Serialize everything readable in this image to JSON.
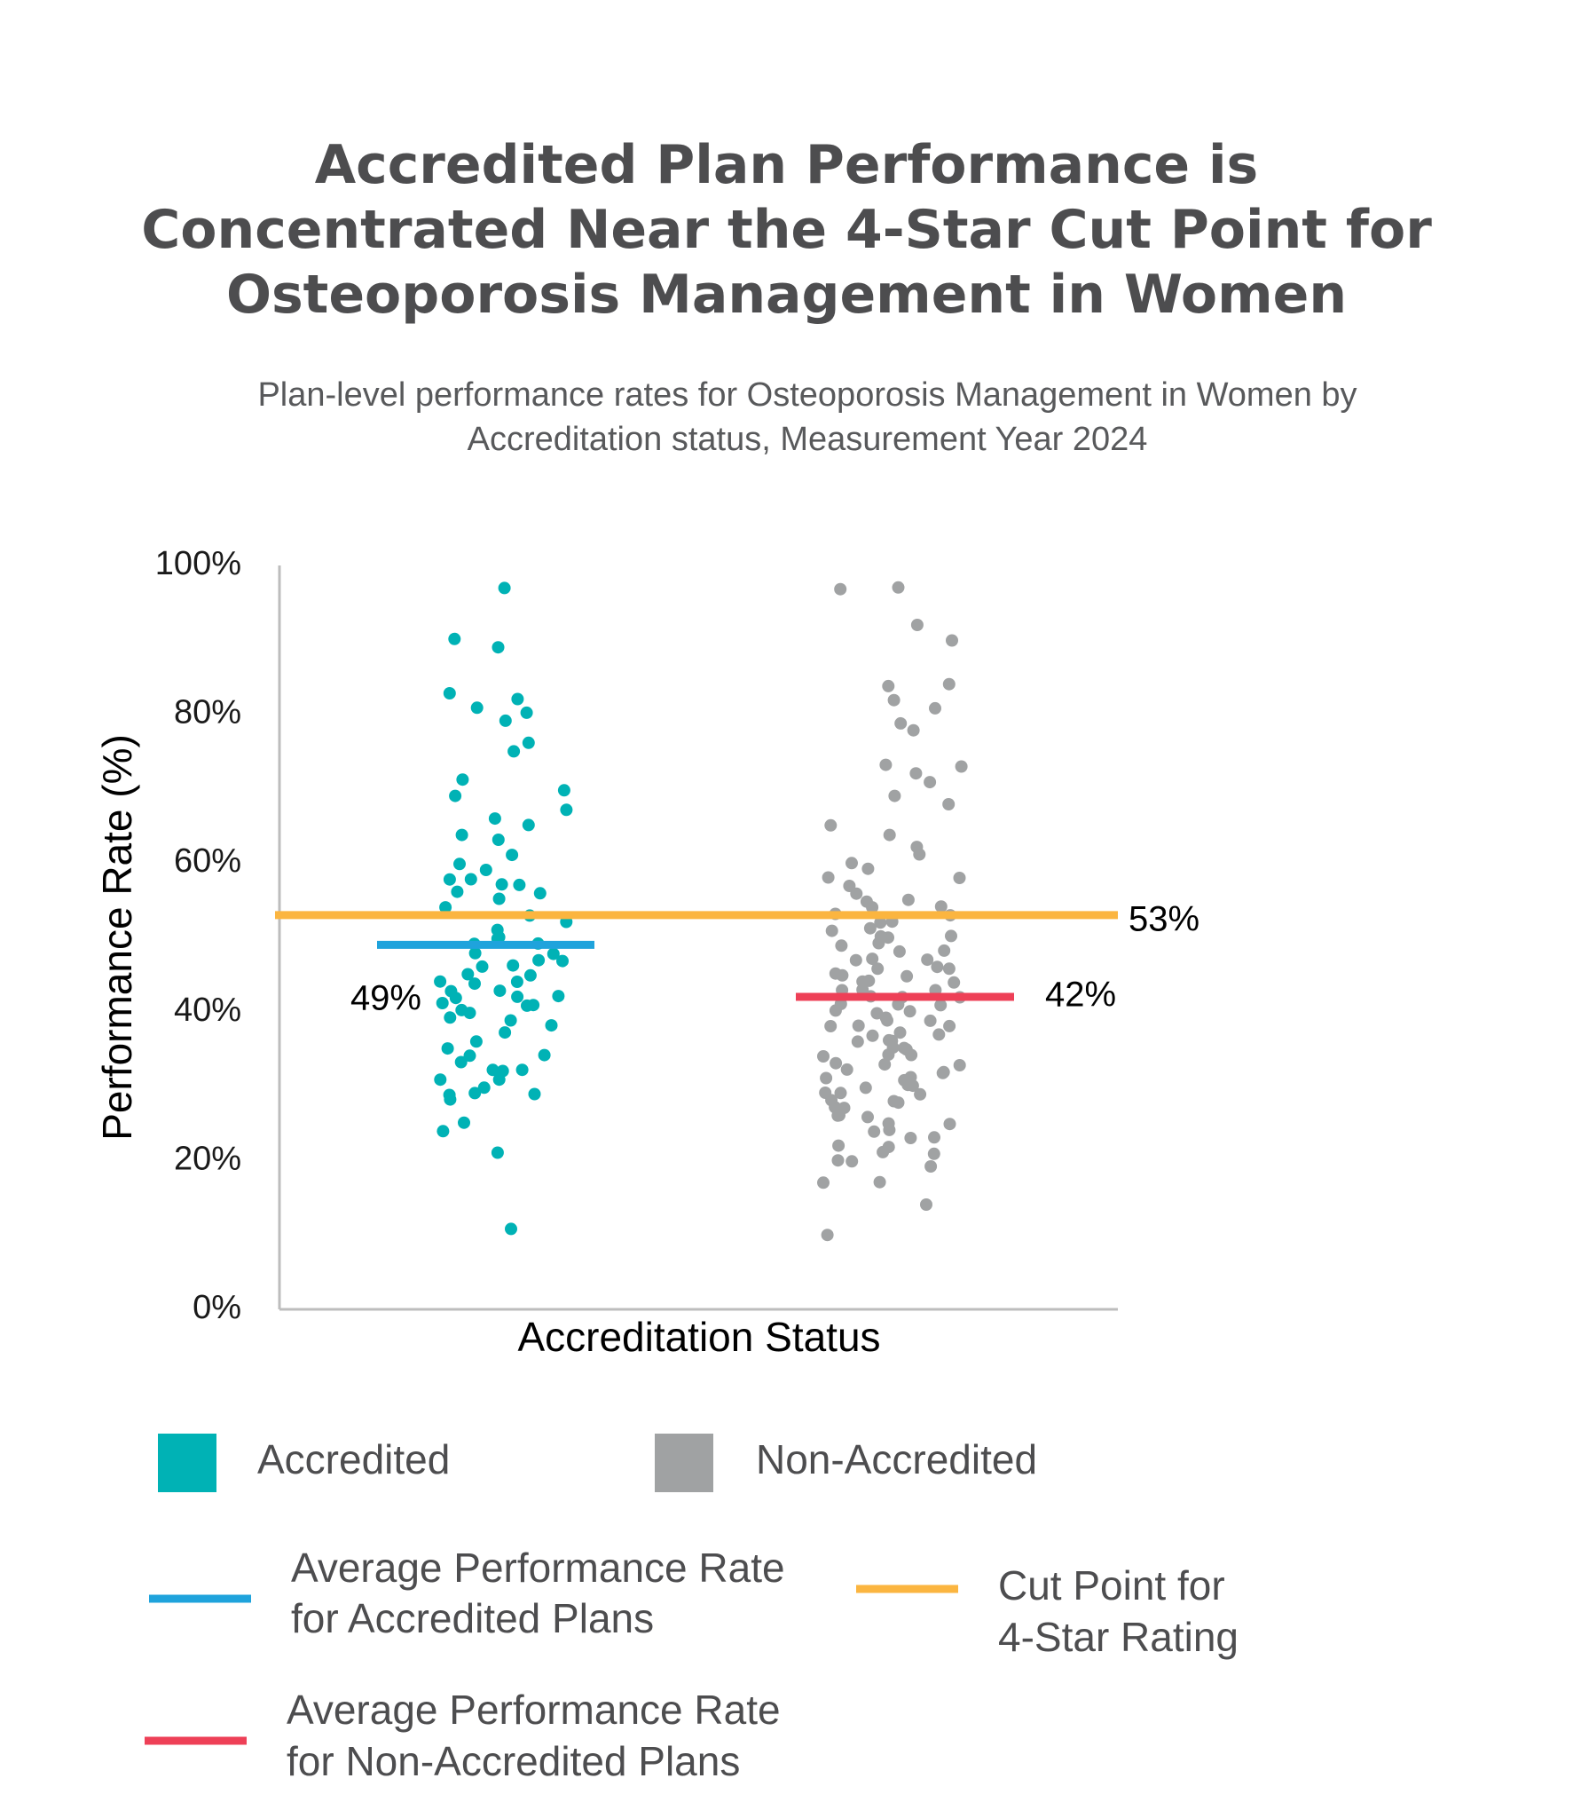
{
  "page": {
    "title": "Accredited Plan Performance is Concentrated Near the 4-Star Cut Point for Osteoporosis Management in Women",
    "subtitle": "Plan-level performance rates for Osteoporosis Management in Women by Accreditation status, Measurement Year 2024"
  },
  "colors": {
    "accredited": "#00b2b5",
    "non_accredited": "#a0a2a3",
    "accredited_avg": "#1fa3dc",
    "non_accredited_avg": "#ee4057",
    "cut_point": "#fbb540",
    "axis": "#bdbdbd"
  },
  "chart_data": {
    "type": "scatter",
    "title": "Accredited Plan Performance is Concentrated Near the 4-Star Cut Point for Osteoporosis Management in Women",
    "subtitle": "Plan-level performance rates for Osteoporosis Management in Women by Accreditation status, Measurement Year 2024",
    "xlabel": "Accreditation Status",
    "ylabel": "Performance Rate (%)",
    "ylim": [
      0,
      100
    ],
    "yticks": [
      "0%",
      "20%",
      "40%",
      "60%",
      "80%",
      "100%"
    ],
    "ytick_values": [
      0,
      20,
      40,
      60,
      80,
      100
    ],
    "categories": [
      "Accredited",
      "Non-Accredited"
    ],
    "grid": false,
    "series": [
      {
        "name": "Accredited",
        "category": "Accredited",
        "values": [
          97,
          90,
          89,
          83,
          82,
          81,
          80,
          79,
          76,
          75,
          71,
          70,
          69,
          67,
          66,
          65,
          64,
          63,
          61,
          60,
          59,
          58,
          58,
          57,
          57,
          56,
          56,
          55,
          54,
          53,
          52,
          51,
          50,
          50,
          49,
          49,
          48,
          48,
          47,
          47,
          46,
          46,
          45,
          45,
          44,
          44,
          44,
          43,
          43,
          42,
          42,
          42,
          41,
          41,
          41,
          40,
          40,
          39,
          39,
          38,
          37,
          36,
          35,
          34,
          34,
          33,
          32,
          32,
          32,
          31,
          31,
          30,
          29,
          29,
          29,
          28,
          25,
          24,
          21,
          11
        ]
      },
      {
        "name": "Non-Accredited",
        "category": "Non-Accredited",
        "values": [
          97,
          97,
          92,
          90,
          84,
          84,
          82,
          81,
          79,
          78,
          73,
          73,
          72,
          71,
          69,
          68,
          65,
          64,
          62,
          61,
          60,
          59,
          58,
          58,
          57,
          56,
          55,
          55,
          54,
          54,
          53,
          53,
          52,
          52,
          51,
          51,
          50,
          50,
          50,
          49,
          49,
          48,
          48,
          47,
          47,
          47,
          46,
          46,
          46,
          45,
          45,
          45,
          44,
          44,
          44,
          43,
          43,
          43,
          42,
          42,
          42,
          41,
          41,
          41,
          40,
          40,
          40,
          39,
          39,
          39,
          38,
          38,
          38,
          37,
          37,
          37,
          36,
          36,
          36,
          35,
          35,
          35,
          34,
          34,
          34,
          33,
          33,
          33,
          32,
          32,
          32,
          31,
          31,
          31,
          30,
          30,
          30,
          29,
          29,
          29,
          28,
          28,
          28,
          27,
          27,
          27,
          26,
          26,
          26,
          25,
          25,
          24,
          24,
          23,
          23,
          22,
          22,
          21,
          21,
          20,
          20,
          19,
          17,
          17,
          14,
          10
        ]
      }
    ],
    "reference_lines": [
      {
        "name": "Average Performance Rate for Accredited Plans",
        "value": 49,
        "label": "49%",
        "category": "Accredited"
      },
      {
        "name": "Average Performance Rate for Non-Accredited Plans",
        "value": 42,
        "label": "42%",
        "category": "Non-Accredited"
      },
      {
        "name": "Cut Point for 4-Star Rating",
        "value": 53,
        "label": "53%",
        "category": "all"
      }
    ],
    "legend": {
      "placement": "bottom",
      "items": [
        {
          "type": "marker",
          "label": "Accredited"
        },
        {
          "type": "marker",
          "label": "Non-Accredited"
        },
        {
          "type": "line",
          "lines": [
            "Average Performance Rate",
            "for Accredited Plans"
          ]
        },
        {
          "type": "line",
          "lines": [
            "Cut Point for",
            "4-Star Rating"
          ]
        },
        {
          "type": "line",
          "lines": [
            "Average Performance Rate",
            "for Non-Accredited Plans"
          ]
        }
      ]
    }
  }
}
